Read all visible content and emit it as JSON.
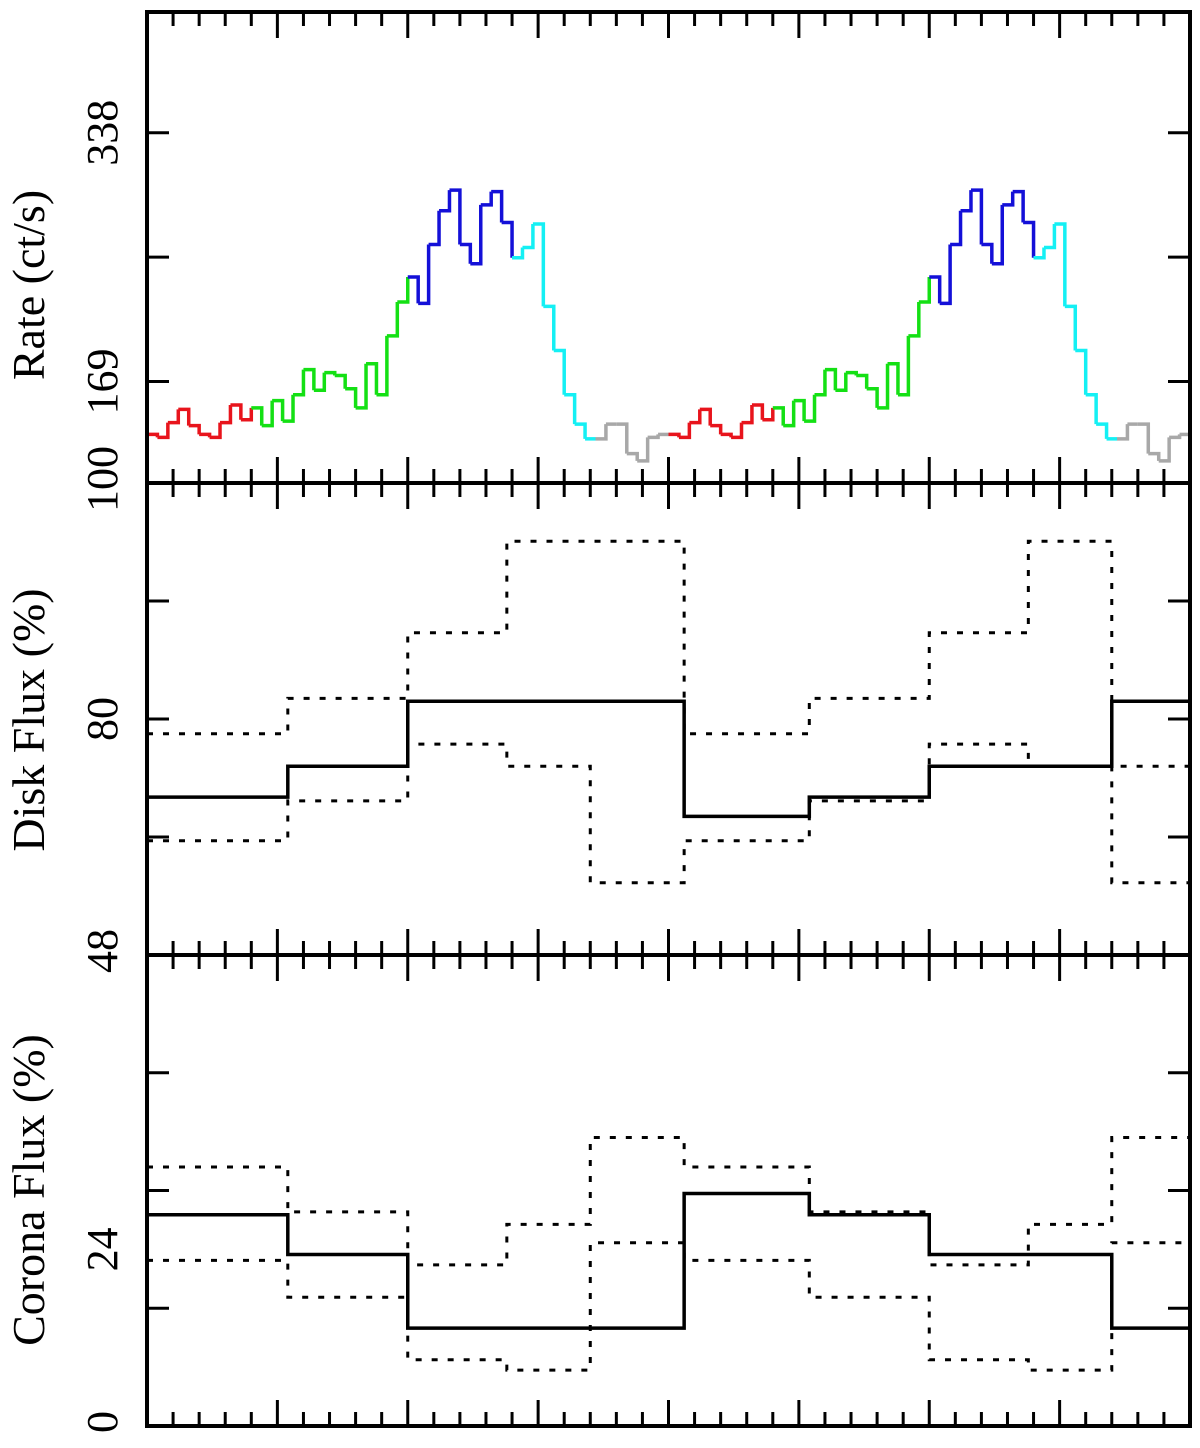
{
  "chart_data": [
    {
      "type": "line",
      "ylabel": "Rate (ct/s)",
      "ylim": [
        100,
        420
      ],
      "yticks": [
        100,
        169,
        338
      ],
      "xlim": [
        0,
        2
      ],
      "step": true,
      "segment_colors": [
        "#e8141c",
        "#14e014",
        "#1410d8",
        "#14f0f4",
        "#a8a8a8"
      ],
      "segment_bounds": [
        0,
        0.2,
        0.5,
        0.7,
        0.85,
        1.0
      ],
      "x": [
        0,
        0.02,
        0.04,
        0.06,
        0.08,
        0.1,
        0.12,
        0.14,
        0.16,
        0.18,
        0.2,
        0.22,
        0.24,
        0.26,
        0.28,
        0.3,
        0.32,
        0.34,
        0.36,
        0.38,
        0.4,
        0.42,
        0.44,
        0.46,
        0.48,
        0.5,
        0.52,
        0.54,
        0.56,
        0.58,
        0.6,
        0.62,
        0.64,
        0.66,
        0.68,
        0.7,
        0.72,
        0.74,
        0.76,
        0.78,
        0.8,
        0.82,
        0.84,
        0.86,
        0.88,
        0.9,
        0.92,
        0.94,
        0.96,
        0.98,
        1.0,
        1.02,
        1.04,
        1.06,
        1.08,
        1.1,
        1.12,
        1.14,
        1.16,
        1.18,
        1.2,
        1.22,
        1.24,
        1.26,
        1.28,
        1.3,
        1.32,
        1.34,
        1.36,
        1.38,
        1.4,
        1.42,
        1.44,
        1.46,
        1.48,
        1.5,
        1.52,
        1.54,
        1.56,
        1.58,
        1.6,
        1.62,
        1.64,
        1.66,
        1.68,
        1.7,
        1.72,
        1.74,
        1.76,
        1.78,
        1.8,
        1.82,
        1.84,
        1.86,
        1.88,
        1.9,
        1.92,
        1.94,
        1.96,
        1.98,
        2.0
      ],
      "y": [
        133,
        131,
        141,
        150,
        139,
        133,
        131,
        141,
        153,
        143,
        151,
        139,
        156,
        142,
        160,
        177,
        163,
        175,
        173,
        164,
        151,
        181,
        160,
        200,
        223,
        240,
        222,
        262,
        285,
        299,
        262,
        249,
        289,
        298,
        277,
        253,
        260,
        276,
        220,
        190,
        160,
        140,
        130,
        130,
        140,
        140,
        120,
        115,
        131,
        133,
        133,
        131,
        141,
        150,
        139,
        133,
        131,
        141,
        153,
        143,
        151,
        139,
        156,
        142,
        160,
        177,
        163,
        175,
        173,
        164,
        151,
        181,
        160,
        200,
        223,
        240,
        222,
        262,
        285,
        299,
        262,
        249,
        289,
        298,
        277,
        253,
        260,
        276,
        220,
        190,
        160,
        140,
        130,
        130,
        140,
        140,
        120,
        115,
        131,
        133,
        133
      ]
    },
    {
      "type": "line",
      "ylabel": "Disk Flux (%)",
      "ylim": [
        48,
        112
      ],
      "yticks": [
        48,
        80
      ],
      "xlim": [
        0,
        2
      ],
      "step": true,
      "series": [
        {
          "x": [
            0,
            0.27,
            0.5,
            0.85,
            1.03,
            1.27,
            1.5,
            1.85,
            2.0
          ],
          "values": [
            69.4,
            73.6,
            82.4,
            82.4,
            66.8,
            69.4,
            73.6,
            82.4,
            66.8
          ],
          "style": "solid"
        },
        {
          "x": [
            0,
            0.27,
            0.5,
            0.69,
            0.85,
            1.03,
            1.27,
            1.5,
            1.69,
            1.85,
            2.0
          ],
          "values": [
            78,
            82.8,
            91.7,
            104.1,
            104.1,
            78,
            82.8,
            91.7,
            104.1,
            73.6,
            73.6
          ],
          "style": "dotted-upper"
        },
        {
          "x": [
            0,
            0.27,
            0.5,
            0.69,
            0.85,
            1.03,
            1.27,
            1.5,
            1.69,
            1.85,
            2.0
          ],
          "values": [
            63.5,
            68.9,
            76.6,
            73.6,
            57.8,
            63.5,
            68.9,
            76.6,
            73.6,
            57.8,
            57.8
          ],
          "style": "dotted-lower"
        }
      ]
    },
    {
      "type": "line",
      "ylabel": "Corona Flux (%)",
      "ylim": [
        0,
        64
      ],
      "yticks": [
        0,
        24
      ],
      "xlim": [
        0,
        2
      ],
      "step": true,
      "series": [
        {
          "x": [
            0,
            0.27,
            0.5,
            0.85,
            1.03,
            1.27,
            1.5,
            1.85,
            2.0
          ],
          "values": [
            28.7,
            23.3,
            13.3,
            13.3,
            31.6,
            28.7,
            23.3,
            13.3,
            31.6
          ],
          "style": "solid"
        },
        {
          "x": [
            0,
            0.27,
            0.5,
            0.69,
            0.85,
            1.03,
            1.27,
            1.5,
            1.69,
            1.85,
            2.0
          ],
          "values": [
            35.2,
            29.1,
            21.9,
            27.4,
            39.2,
            35.2,
            29.1,
            21.9,
            27.4,
            39.2,
            39.2
          ],
          "style": "dotted-upper"
        },
        {
          "x": [
            0,
            0.27,
            0.5,
            0.69,
            0.85,
            1.03,
            1.27,
            1.5,
            1.69,
            1.85,
            2.0
          ],
          "values": [
            22.5,
            17.5,
            9,
            7.6,
            24.9,
            22.5,
            17.5,
            9,
            7.6,
            24.9,
            24.9
          ],
          "style": "dotted-lower"
        }
      ]
    }
  ]
}
